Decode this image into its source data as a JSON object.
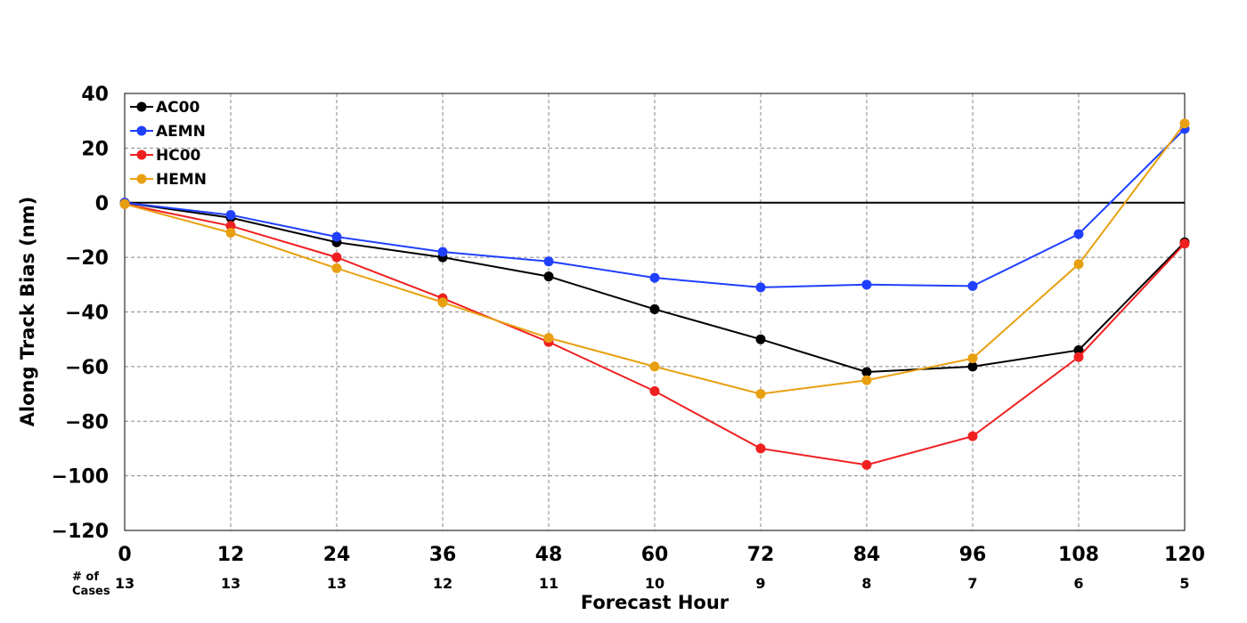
{
  "chart_data": {
    "type": "line",
    "xlabel": "Forecast Hour",
    "ylabel": "Along Track Bias (nm)",
    "x": [
      0,
      12,
      24,
      36,
      48,
      60,
      72,
      84,
      96,
      108,
      120
    ],
    "xticks": [
      "0",
      "12",
      "24",
      "36",
      "48",
      "60",
      "72",
      "84",
      "96",
      "108",
      "120"
    ],
    "xlim": [
      0,
      120
    ],
    "ylim": [
      -120,
      40
    ],
    "yticks": [
      "40",
      "20",
      "0",
      "−20",
      "−40",
      "−60",
      "−80",
      "−100",
      "−120"
    ],
    "grid": true,
    "legend_position": "top-left",
    "cases_label": "# of\nCases",
    "cases": [
      "13",
      "13",
      "13",
      "12",
      "11",
      "10",
      "9",
      "8",
      "7",
      "6",
      "5"
    ],
    "series": [
      {
        "name": "AC00",
        "color": "#000000",
        "values": [
          0,
          -5.5,
          -14.5,
          -20,
          -27,
          -39,
          -50,
          -62,
          -60,
          -54,
          -14.5
        ]
      },
      {
        "name": "AEMN",
        "color": "#2040ff",
        "values": [
          0,
          -4.5,
          -12.5,
          -18,
          -21.5,
          -27.5,
          -31,
          -30,
          -30.5,
          -11.5,
          27
        ]
      },
      {
        "name": "HC00",
        "color": "#f02020",
        "values": [
          -0.5,
          -8.5,
          -20,
          -35,
          -51,
          -69,
          -90,
          -96,
          -85.5,
          -56.5,
          -15
        ]
      },
      {
        "name": "HEMN",
        "color": "#e8a010",
        "values": [
          -0.5,
          -11,
          -24,
          -36.5,
          -49.5,
          -60,
          -70,
          -65,
          -57,
          -22.5,
          29
        ]
      }
    ]
  }
}
